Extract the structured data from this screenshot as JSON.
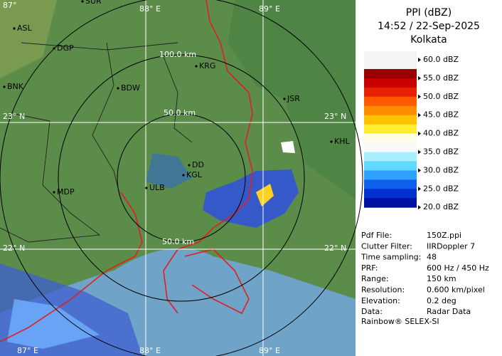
{
  "header": {
    "title": "PPI (dBZ)",
    "datetime": "14:52 / 22-Sep-2025",
    "station": "Kolkata"
  },
  "map": {
    "grid_labels": [
      "87°",
      "88° E",
      "89° E",
      "23° N",
      "23° N",
      "22° N",
      "22° N",
      "87° E",
      "88° E",
      "89° E"
    ],
    "ring_labels": [
      "100.0 km",
      "50.0 km",
      "50.0 km"
    ],
    "cities": [
      "SUR",
      "ASL",
      "DGP",
      "BNK",
      "BDW",
      "KRG",
      "JSR",
      "KHL",
      "DD",
      "KGL",
      "ULB",
      "MDP"
    ]
  },
  "legend": {
    "labels": [
      "60.0 dBZ",
      "55.0 dBZ",
      "50.0 dBZ",
      "45.0 dBZ",
      "40.0 dBZ",
      "35.0 dBZ",
      "30.0 dBZ",
      "25.0 dBZ",
      "20.0 dBZ"
    ],
    "bands": [
      [
        "#f4f4f4",
        "#9a0000"
      ],
      [
        "#c80000",
        "#e82000"
      ],
      [
        "#ff5a00",
        "#ff8c00"
      ],
      [
        "#ffc000",
        "#ffee30"
      ],
      [
        "#fffce8",
        "#fafafa"
      ],
      [
        "#a8f0ff",
        "#60d8ff"
      ],
      [
        "#30a0ff",
        "#1060f0"
      ],
      [
        "#0030d0",
        "#0010a0"
      ]
    ]
  },
  "info": {
    "rows": [
      [
        "Pdf File:",
        "150Z.ppi"
      ],
      [
        "Clutter Filter:",
        "IIRDoppler 7"
      ],
      [
        "Time sampling:",
        "48"
      ],
      [
        "PRF:",
        "600 Hz / 450 Hz"
      ],
      [
        "Range:",
        "150 km"
      ],
      [
        "Resolution:",
        "0.600 km/pixel"
      ],
      [
        "Elevation:",
        "0.2 deg"
      ],
      [
        "Data:",
        "Radar Data"
      ]
    ]
  },
  "footer": "Rainbow® SELEX-SI"
}
